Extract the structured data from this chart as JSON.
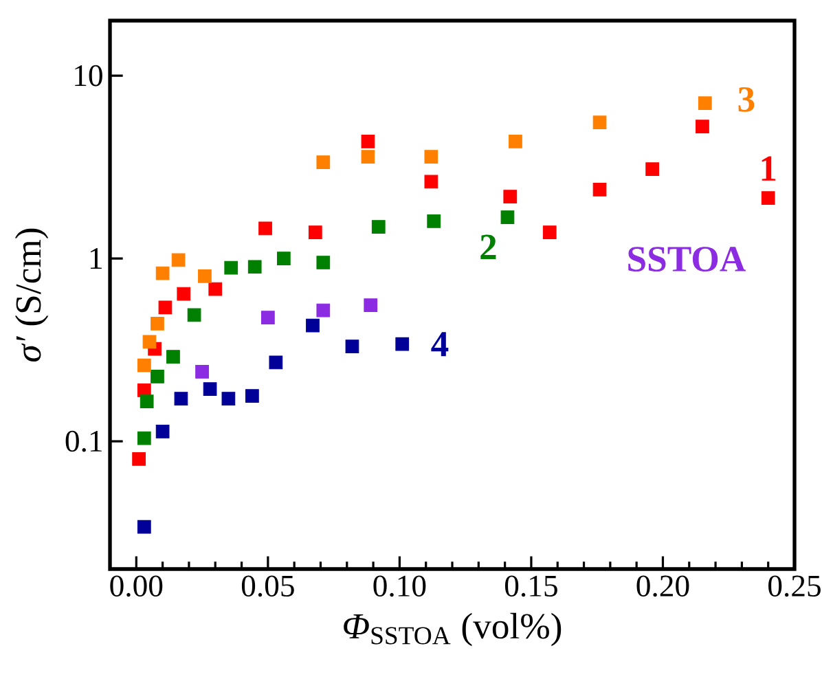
{
  "chart_data": {
    "type": "scatter",
    "xlabel": "*Φ*$_{SSTOA}$ (vol%)",
    "ylabel": "*σ′* (S/cm)",
    "xlim": [
      -0.01,
      0.25
    ],
    "ylim": [
      0.02,
      20
    ],
    "log": "y",
    "xticks": [
      {
        "value": 0,
        "label": "0.00"
      },
      {
        "value": 0.05,
        "label": "0.05"
      },
      {
        "value": 0.1,
        "label": "0.10"
      },
      {
        "value": 0.15,
        "label": "0.15"
      },
      {
        "value": 0.2,
        "label": "0.20"
      },
      {
        "value": 0.25,
        "label": "0.25"
      }
    ],
    "yticks": [
      0.1,
      1,
      10
    ],
    "marker": "square",
    "series": [
      {
        "name": "1",
        "color": "#ff0000",
        "x": [
          0.001,
          0.003,
          0.004,
          0.007,
          0.011,
          0.018,
          0.03,
          0.049,
          0.068,
          0.088,
          0.112,
          0.142,
          0.157,
          0.176,
          0.196,
          0.215,
          0.24
        ],
        "values": [
          0.08,
          0.19,
          null,
          0.32,
          0.54,
          0.64,
          0.68,
          1.46,
          1.39,
          4.36,
          2.63,
          2.18,
          1.39,
          2.38,
          3.08,
          5.27,
          2.14
        ]
      },
      {
        "name": "2",
        "color": "#008000",
        "x": [
          0.003,
          0.004,
          0.008,
          0.014,
          0.022,
          0.036,
          0.045,
          0.056,
          0.071,
          0.092,
          0.113,
          0.141
        ],
        "values": [
          0.104,
          0.165,
          0.226,
          0.29,
          0.49,
          0.89,
          0.9,
          1.0,
          0.95,
          1.49,
          1.6,
          1.68
        ]
      },
      {
        "name": "3",
        "color": "#ff8000",
        "x": [
          0.003,
          0.005,
          0.008,
          0.01,
          0.016,
          0.026,
          0.071,
          0.088,
          0.112,
          0.144,
          0.176,
          0.216
        ],
        "values": [
          0.26,
          0.35,
          0.44,
          0.83,
          0.98,
          0.8,
          3.36,
          3.6,
          3.6,
          4.36,
          5.55,
          7.07
        ]
      },
      {
        "name": "4",
        "color": "#000099",
        "x": [
          0.003,
          0.01,
          0.017,
          0.028,
          0.035,
          0.044,
          0.053,
          0.067,
          0.082,
          0.101
        ],
        "values": [
          0.034,
          0.113,
          0.171,
          0.193,
          0.171,
          0.177,
          0.27,
          0.43,
          0.33,
          0.34
        ]
      },
      {
        "name": "SSTOA",
        "color": "#8b2be2",
        "x": [
          0.025,
          0.05,
          0.071,
          0.089
        ],
        "values": [
          0.24,
          0.475,
          0.52,
          0.555
        ]
      }
    ]
  }
}
